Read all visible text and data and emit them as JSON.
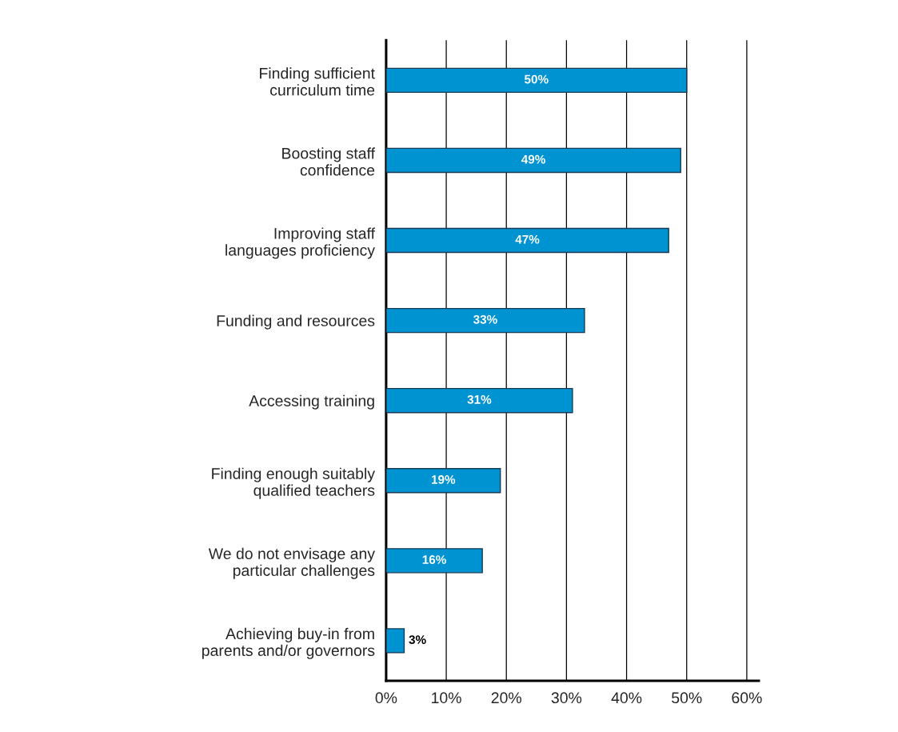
{
  "chart_data": {
    "type": "bar",
    "orientation": "horizontal",
    "categories": [
      "Finding sufficient\ncurriculum time",
      "Boosting staff\nconfidence",
      "Improving staff\nlanguages proficiency",
      "Funding and resources",
      "Accessing training",
      "Finding enough suitably\nqualified teachers",
      "We do not envisage any\nparticular challenges",
      "Achieving buy-in from\nparents and/or governors"
    ],
    "values": [
      50,
      49,
      47,
      33,
      31,
      19,
      16,
      3
    ],
    "value_labels": [
      "50%",
      "49%",
      "47%",
      "33%",
      "31%",
      "19%",
      "16%",
      "3%"
    ],
    "color": "#0093d2",
    "xlim": [
      0,
      62
    ],
    "xticks": [
      {
        "value": 0,
        "label": "0%"
      },
      {
        "value": 10,
        "label": "10%"
      },
      {
        "value": 20,
        "label": "20%"
      },
      {
        "value": 30,
        "label": "30%"
      },
      {
        "value": 40,
        "label": "40%"
      },
      {
        "value": 50,
        "label": "50%"
      },
      {
        "value": 60,
        "label": "60%"
      }
    ],
    "grid": "x",
    "legend": false
  }
}
